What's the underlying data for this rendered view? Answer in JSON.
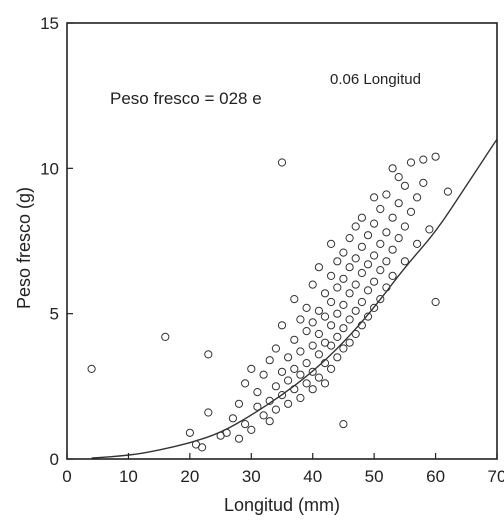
{
  "chart_data": {
    "type": "scatter",
    "title": "",
    "xlabel": "Longitud (mm)",
    "ylabel": "Peso fresco (g)",
    "xlim": [
      0,
      70
    ],
    "ylim": [
      0,
      15
    ],
    "x_ticks": [
      "0",
      "10",
      "20",
      "30",
      "40",
      "50",
      "60",
      "70"
    ],
    "y_ticks": [
      "0",
      "5",
      "10",
      "15"
    ],
    "grid": false,
    "legend": "none",
    "annotation": {
      "text": "Peso fresco = 028  e",
      "superscript": "0.06 Longitud"
    },
    "fit_curve": {
      "equation_shown": "Peso fresco = 028 e^(0.06 Longitud)",
      "x": [
        4,
        10,
        15,
        20,
        25,
        30,
        35,
        40,
        45,
        50,
        55,
        60,
        65,
        70
      ],
      "y": [
        0.03,
        0.12,
        0.3,
        0.55,
        0.9,
        1.5,
        2.2,
        3.0,
        4.0,
        5.2,
        6.6,
        7.8,
        9.4,
        11.0
      ]
    },
    "series": [
      {
        "marker": "open-circle",
        "points": [
          [
            4,
            3.1
          ],
          [
            16,
            4.2
          ],
          [
            20,
            0.9
          ],
          [
            21,
            0.5
          ],
          [
            22,
            0.4
          ],
          [
            23,
            3.6
          ],
          [
            23,
            1.6
          ],
          [
            25,
            0.8
          ],
          [
            26,
            0.9
          ],
          [
            27,
            1.4
          ],
          [
            28,
            0.7
          ],
          [
            28,
            1.9
          ],
          [
            29,
            1.2
          ],
          [
            29,
            2.6
          ],
          [
            30,
            3.1
          ],
          [
            30,
            1.0
          ],
          [
            31,
            1.8
          ],
          [
            31,
            2.3
          ],
          [
            32,
            1.5
          ],
          [
            32,
            2.9
          ],
          [
            33,
            2.0
          ],
          [
            33,
            3.4
          ],
          [
            33,
            1.3
          ],
          [
            34,
            2.5
          ],
          [
            34,
            3.8
          ],
          [
            34,
            1.7
          ],
          [
            35,
            10.2
          ],
          [
            35,
            2.2
          ],
          [
            35,
            3.0
          ],
          [
            35,
            4.6
          ],
          [
            36,
            2.7
          ],
          [
            36,
            3.5
          ],
          [
            36,
            1.9
          ],
          [
            37,
            5.5
          ],
          [
            37,
            3.1
          ],
          [
            37,
            2.4
          ],
          [
            37,
            4.1
          ],
          [
            38,
            2.9
          ],
          [
            38,
            3.7
          ],
          [
            38,
            4.8
          ],
          [
            38,
            2.1
          ],
          [
            39,
            3.3
          ],
          [
            39,
            4.4
          ],
          [
            39,
            2.6
          ],
          [
            39,
            5.2
          ],
          [
            40,
            3.0
          ],
          [
            40,
            3.9
          ],
          [
            40,
            4.7
          ],
          [
            40,
            2.4
          ],
          [
            40,
            6.0
          ],
          [
            41,
            3.6
          ],
          [
            41,
            4.3
          ],
          [
            41,
            5.1
          ],
          [
            41,
            2.8
          ],
          [
            41,
            6.6
          ],
          [
            42,
            3.3
          ],
          [
            42,
            4.0
          ],
          [
            42,
            4.9
          ],
          [
            42,
            5.7
          ],
          [
            42,
            2.6
          ],
          [
            43,
            3.9
          ],
          [
            43,
            4.6
          ],
          [
            43,
            5.4
          ],
          [
            43,
            6.3
          ],
          [
            43,
            3.1
          ],
          [
            43,
            7.4
          ],
          [
            44,
            4.2
          ],
          [
            44,
            5.0
          ],
          [
            44,
            5.9
          ],
          [
            44,
            3.5
          ],
          [
            44,
            6.8
          ],
          [
            45,
            4.5
          ],
          [
            45,
            5.3
          ],
          [
            45,
            6.2
          ],
          [
            45,
            3.8
          ],
          [
            45,
            7.1
          ],
          [
            45,
            1.2
          ],
          [
            46,
            4.8
          ],
          [
            46,
            5.7
          ],
          [
            46,
            6.6
          ],
          [
            46,
            4.0
          ],
          [
            46,
            7.6
          ],
          [
            47,
            5.1
          ],
          [
            47,
            6.0
          ],
          [
            47,
            6.9
          ],
          [
            47,
            4.3
          ],
          [
            47,
            8.0
          ],
          [
            48,
            5.4
          ],
          [
            48,
            6.4
          ],
          [
            48,
            7.3
          ],
          [
            48,
            4.6
          ],
          [
            48,
            8.3
          ],
          [
            49,
            5.8
          ],
          [
            49,
            6.7
          ],
          [
            49,
            7.7
          ],
          [
            49,
            4.9
          ],
          [
            50,
            6.1
          ],
          [
            50,
            7.0
          ],
          [
            50,
            8.1
          ],
          [
            50,
            5.2
          ],
          [
            50,
            9.0
          ],
          [
            51,
            6.5
          ],
          [
            51,
            7.4
          ],
          [
            51,
            8.6
          ],
          [
            51,
            5.5
          ],
          [
            52,
            6.8
          ],
          [
            52,
            7.8
          ],
          [
            52,
            9.1
          ],
          [
            52,
            5.9
          ],
          [
            53,
            7.2
          ],
          [
            53,
            8.3
          ],
          [
            53,
            10.0
          ],
          [
            53,
            6.3
          ],
          [
            54,
            7.6
          ],
          [
            54,
            8.8
          ],
          [
            54,
            9.7
          ],
          [
            55,
            8.0
          ],
          [
            55,
            9.4
          ],
          [
            55,
            6.8
          ],
          [
            56,
            8.5
          ],
          [
            56,
            10.2
          ],
          [
            57,
            9.0
          ],
          [
            57,
            7.4
          ],
          [
            58,
            10.3
          ],
          [
            58,
            9.5
          ],
          [
            59,
            7.9
          ],
          [
            60,
            10.4
          ],
          [
            60,
            5.4
          ],
          [
            62,
            9.2
          ]
        ]
      }
    ]
  }
}
